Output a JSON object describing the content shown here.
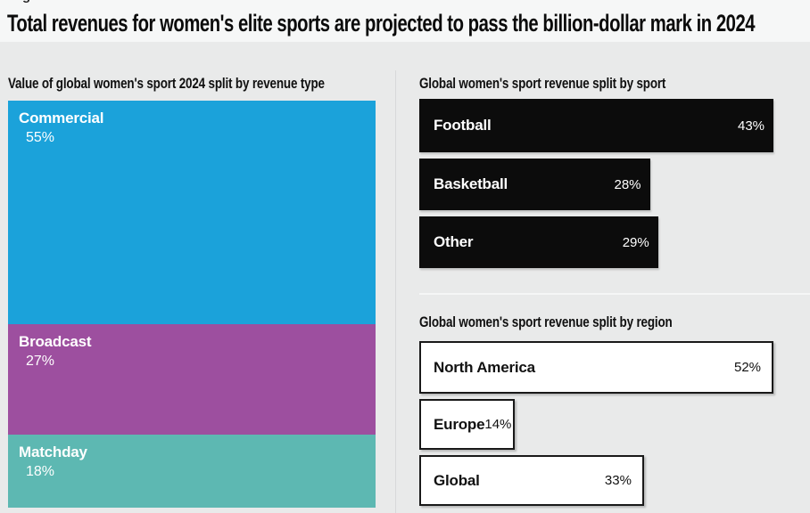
{
  "page": {
    "title": "Total revenues for women's elite sports are projected to pass the billion-dollar mark in 2024",
    "cropped_text_remnant": "g"
  },
  "colors": {
    "background": "#e9eaea",
    "header_band": "#f6f7f7",
    "commercial_blue": "#1ba2da",
    "broadcast_purple": "#9d4f9f",
    "matchday_teal": "#5db8b2",
    "bar_black": "#0c0c0c",
    "bar_white": "#ffffff",
    "bar_border_dark": "#191919",
    "divider_gray": "#d8d9da",
    "divider_light": "#f5f6f6",
    "title_text": "#0b0b0b",
    "label_on_dark": "#ffffff",
    "label_on_light": "#111111"
  },
  "chart_data": [
    {
      "type": "bar",
      "variant": "stacked-column",
      "title": "Value of global women's sport 2024 split by revenue type",
      "categories": [
        "Commercial",
        "Broadcast",
        "Matchday"
      ],
      "values": [
        55,
        27,
        18
      ],
      "value_labels": [
        "55%",
        "27%",
        "18%"
      ],
      "unit": "%",
      "segment_colors": [
        "#1ba2da",
        "#9d4f9f",
        "#5db8b2"
      ],
      "legend": "labels-inside-segments",
      "axis": "none"
    },
    {
      "type": "bar",
      "variant": "horizontal",
      "title": "Global women's sport revenue split by sport",
      "categories": [
        "Football",
        "Basketball",
        "Other"
      ],
      "values": [
        43,
        28,
        29
      ],
      "value_labels": [
        "43%",
        "28%",
        "29%"
      ],
      "unit": "%",
      "bar_fill": "#0c0c0c",
      "xlim": [
        0,
        43
      ],
      "legend": "labels-inside-bars",
      "axis": "none"
    },
    {
      "type": "bar",
      "variant": "horizontal",
      "title": "Global women's sport revenue split by region",
      "categories": [
        "North America",
        "Europe",
        "Global"
      ],
      "values": [
        52,
        14,
        33
      ],
      "value_labels": [
        "52%",
        "14%",
        "33%"
      ],
      "unit": "%",
      "bar_fill": "#ffffff",
      "xlim": [
        0,
        52
      ],
      "legend": "labels-inside-bars",
      "axis": "none"
    }
  ]
}
